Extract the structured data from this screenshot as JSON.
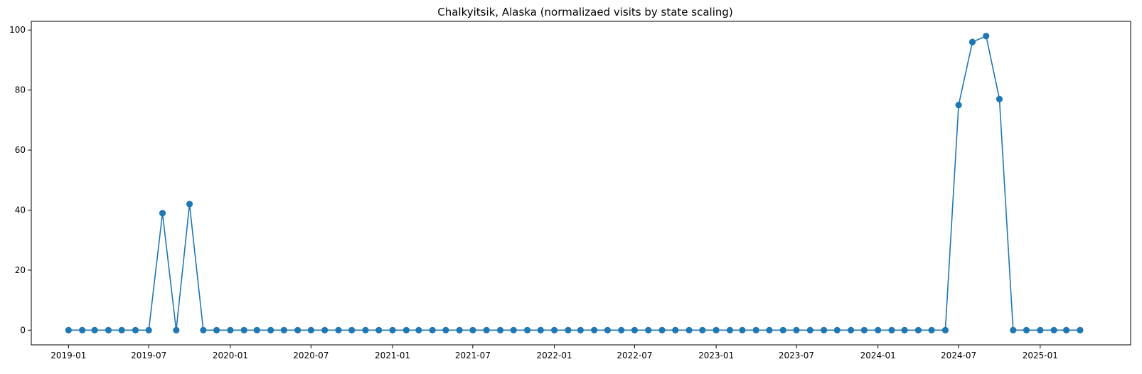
{
  "chart_data": {
    "type": "line",
    "title": "Chalkyitsik, Alaska (normalizaed visits by state scaling)",
    "xlabel": "",
    "ylabel": "",
    "x_axis_type": "date",
    "xlim": [
      "2018-10-09",
      "2025-07-24"
    ],
    "ylim": [
      -4.9,
      102.9
    ],
    "grid": false,
    "legend": "none",
    "x_ticks": [
      "2019-01",
      "2019-07",
      "2020-01",
      "2020-07",
      "2021-01",
      "2021-07",
      "2022-01",
      "2022-07",
      "2023-01",
      "2023-07",
      "2024-01",
      "2024-07",
      "2025-01"
    ],
    "y_ticks": [
      0,
      20,
      40,
      60,
      80,
      100
    ],
    "series": [
      {
        "color": "#1f77b4",
        "marker": "circle",
        "x": [
          "2019-01-01",
          "2019-02-01",
          "2019-03-01",
          "2019-04-01",
          "2019-05-01",
          "2019-06-01",
          "2019-07-01",
          "2019-08-01",
          "2019-09-01",
          "2019-10-01",
          "2019-11-01",
          "2019-12-01",
          "2020-01-01",
          "2020-02-01",
          "2020-03-01",
          "2020-04-01",
          "2020-05-01",
          "2020-06-01",
          "2020-07-01",
          "2020-08-01",
          "2020-09-01",
          "2020-10-01",
          "2020-11-01",
          "2020-12-01",
          "2021-01-01",
          "2021-02-01",
          "2021-03-01",
          "2021-04-01",
          "2021-05-01",
          "2021-06-01",
          "2021-07-01",
          "2021-08-01",
          "2021-09-01",
          "2021-10-01",
          "2021-11-01",
          "2021-12-01",
          "2022-01-01",
          "2022-02-01",
          "2022-03-01",
          "2022-04-01",
          "2022-05-01",
          "2022-06-01",
          "2022-07-01",
          "2022-08-01",
          "2022-09-01",
          "2022-10-01",
          "2022-11-01",
          "2022-12-01",
          "2023-01-01",
          "2023-02-01",
          "2023-03-01",
          "2023-04-01",
          "2023-05-01",
          "2023-06-01",
          "2023-07-01",
          "2023-08-01",
          "2023-09-01",
          "2023-10-01",
          "2023-11-01",
          "2023-12-01",
          "2024-01-01",
          "2024-02-01",
          "2024-03-01",
          "2024-04-01",
          "2024-05-01",
          "2024-06-01",
          "2024-07-01",
          "2024-08-01",
          "2024-09-01",
          "2024-10-01",
          "2024-11-01",
          "2024-12-01",
          "2025-01-01",
          "2025-02-01",
          "2025-03-01",
          "2025-04-01"
        ],
        "y": [
          0,
          0,
          0,
          0,
          0,
          0,
          0,
          39,
          0,
          42,
          0,
          0,
          0,
          0,
          0,
          0,
          0,
          0,
          0,
          0,
          0,
          0,
          0,
          0,
          0,
          0,
          0,
          0,
          0,
          0,
          0,
          0,
          0,
          0,
          0,
          0,
          0,
          0,
          0,
          0,
          0,
          0,
          0,
          0,
          0,
          0,
          0,
          0,
          0,
          0,
          0,
          0,
          0,
          0,
          0,
          0,
          0,
          0,
          0,
          0,
          0,
          0,
          0,
          0,
          0,
          0,
          75,
          96,
          98,
          77,
          0,
          0,
          0,
          0,
          0,
          0
        ]
      }
    ]
  }
}
